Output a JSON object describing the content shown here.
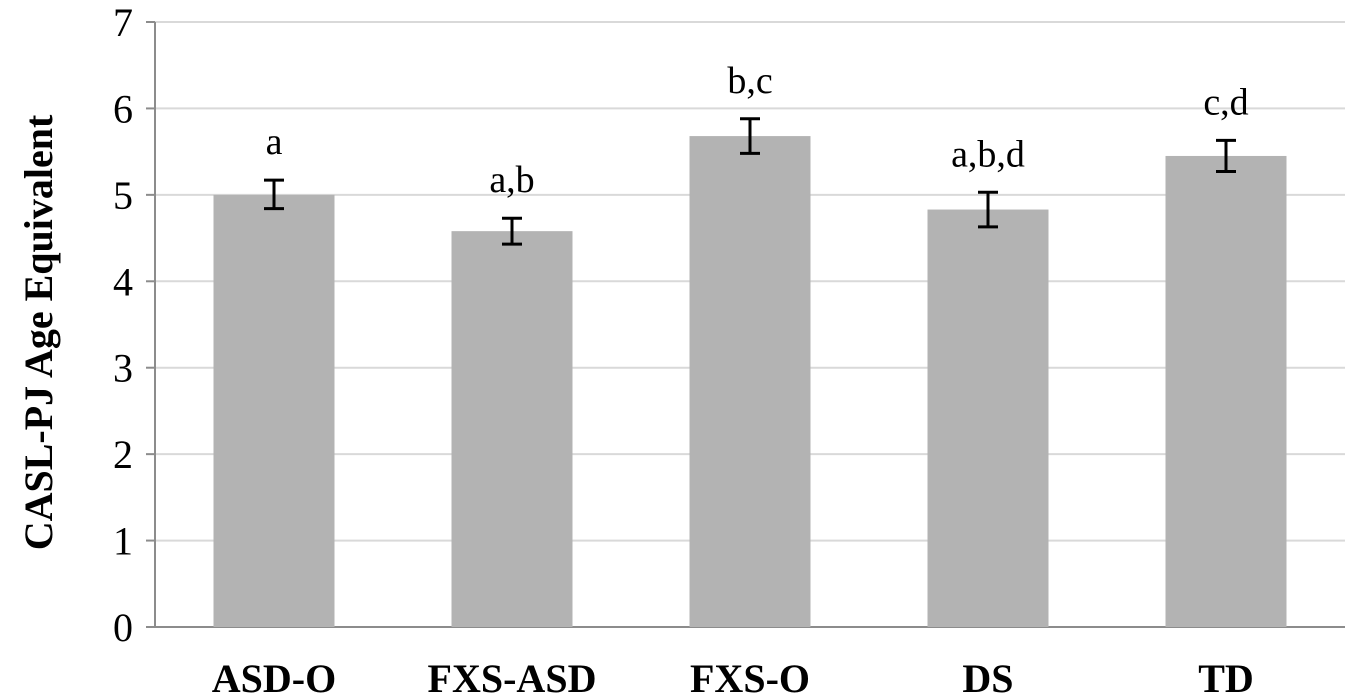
{
  "chart_data": {
    "type": "bar",
    "title": "",
    "xlabel": "",
    "ylabel": "CASL-PJ Age Equivalent",
    "ylim": [
      0,
      7
    ],
    "y_ticks": [
      0,
      1,
      2,
      3,
      4,
      5,
      6,
      7
    ],
    "grid": true,
    "legend": "none",
    "bar_color": "#b3b3b3",
    "categories": [
      "ASD-O",
      "FXS-ASD",
      "FXS-O",
      "DS",
      "TD"
    ],
    "values": [
      5.0,
      4.58,
      5.68,
      4.83,
      5.45
    ],
    "error_low": [
      4.84,
      4.43,
      5.48,
      4.63,
      5.27
    ],
    "error_high": [
      5.17,
      4.73,
      5.88,
      5.03,
      5.63
    ],
    "annotations": [
      "a",
      "a,b",
      "b,c",
      "a,b,d",
      "c,d"
    ]
  }
}
